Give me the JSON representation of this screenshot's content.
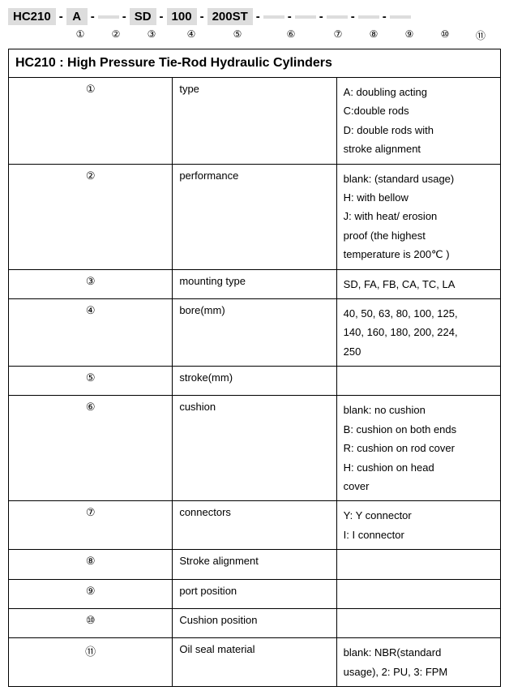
{
  "code_segments": [
    {
      "text": "HC210",
      "blank": false
    },
    {
      "text": "A",
      "blank": false
    },
    {
      "text": " ",
      "blank": true
    },
    {
      "text": "SD",
      "blank": false
    },
    {
      "text": "100",
      "blank": false
    },
    {
      "text": "200ST",
      "blank": false
    },
    {
      "text": " ",
      "blank": true
    },
    {
      "text": " ",
      "blank": true
    },
    {
      "text": " ",
      "blank": true
    },
    {
      "text": " ",
      "blank": true
    },
    {
      "text": " ",
      "blank": true
    }
  ],
  "index_markers": [
    "①",
    "②",
    "③",
    "④",
    "⑤",
    "⑥",
    "⑦",
    "⑧",
    "⑨",
    "⑩",
    "⑪"
  ],
  "index_widths": [
    26,
    26,
    26,
    36,
    42,
    54,
    26,
    26,
    26,
    26,
    26
  ],
  "index_lead_pad": 72,
  "title": "HC210 : High Pressure Tie-Rod Hydraulic Cylinders",
  "rows": [
    {
      "idx": "①",
      "label": "type",
      "desc_html": [
        [
          {
            "t": "A: doubling acting"
          },
          {
            "t": "C:double rods"
          }
        ],
        [
          {
            "t": "D: double rods with stroke alignment"
          }
        ]
      ]
    },
    {
      "idx": "②",
      "label": "performance",
      "desc_html": [
        [
          {
            "t": "blank: (standard usage)"
          },
          {
            "t": "H: with bellow"
          }
        ],
        [
          {
            "t": "J: with heat/ erosion proof (the highest temperature is 200℃ )"
          }
        ]
      ]
    },
    {
      "idx": "③",
      "label": "mounting type",
      "desc_html": [
        [
          {
            "t": "SD, FA, FB, CA, TC, LA"
          }
        ]
      ]
    },
    {
      "idx": "④",
      "label": "bore(mm)",
      "desc_html": [
        [
          {
            "t": "40, 50, 63, 80, 100, 125, 140, 160, 180, 200, 224, 250"
          }
        ]
      ]
    },
    {
      "idx": "⑤",
      "label": "stroke(mm)",
      "desc_html": [
        [
          {
            "t": ""
          }
        ]
      ]
    },
    {
      "idx": "⑥",
      "label": "cushion",
      "desc_html": [
        [
          {
            "t": "blank: no cushion"
          },
          {
            "t": "B: cushion on both ends"
          }
        ],
        [
          {
            "t": "R: cushion on rod cover"
          },
          {
            "t": "H: cushion on head cover"
          }
        ]
      ]
    },
    {
      "idx": "⑦",
      "label": "connectors",
      "desc_html": [
        [
          {
            "t": "Y: Y connector"
          },
          {
            "t": "I: I connector"
          }
        ]
      ]
    },
    {
      "idx": "⑧",
      "label": "Stroke alignment",
      "desc_html": [
        [
          {
            "t": ""
          }
        ]
      ]
    },
    {
      "idx": "⑨",
      "label": "port position",
      "desc_html": [
        [
          {
            "t": ""
          }
        ]
      ]
    },
    {
      "idx": "⑩",
      "label": "Cushion position",
      "desc_html": [
        [
          {
            "t": ""
          }
        ]
      ]
    },
    {
      "idx": "⑪",
      "label": "Oil seal material",
      "desc_html": [
        [
          {
            "t": "blank: NBR(standard usage),   2: PU,   3: FPM"
          }
        ]
      ]
    }
  ]
}
